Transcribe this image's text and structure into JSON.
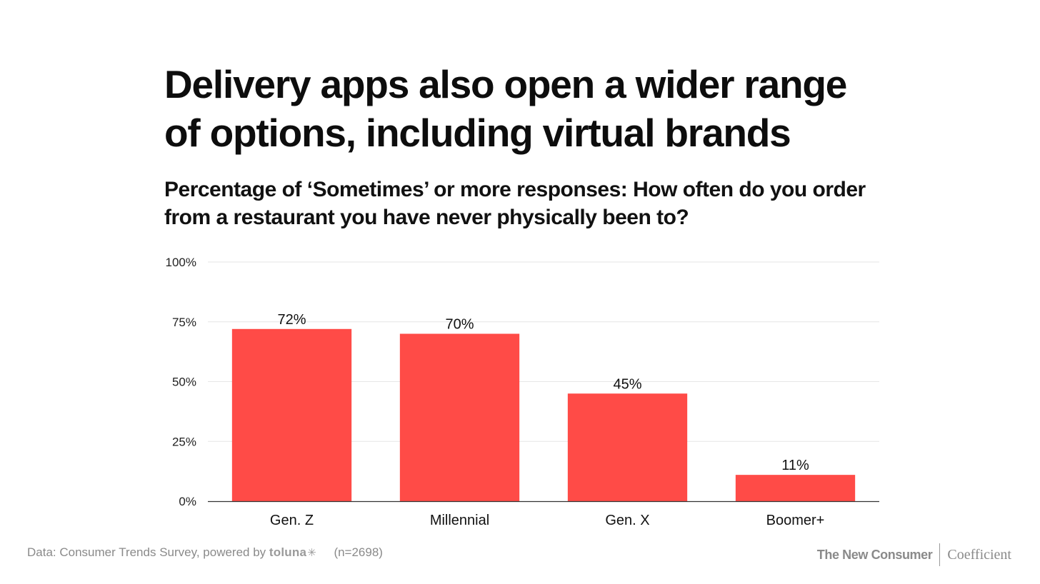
{
  "title": "Delivery apps also open a wider range of options, including virtual brands",
  "subtitle": "Percentage of ‘Sometimes’ or more responses: How often do you order from a restaurant you have never physically been to?",
  "chart_data": {
    "type": "bar",
    "categories": [
      "Gen. Z",
      "Millennial",
      "Gen. X",
      "Boomer+"
    ],
    "values": [
      72,
      70,
      45,
      11
    ],
    "value_labels": [
      "72%",
      "70%",
      "45%",
      "11%"
    ],
    "ylim": [
      0,
      100
    ],
    "yticks": [
      0,
      25,
      50,
      75,
      100
    ],
    "ytick_labels": [
      "0%",
      "25%",
      "50%",
      "75%",
      "100%"
    ],
    "xlabel": "",
    "ylabel": "",
    "grid": true,
    "bar_color": "#ff4b47"
  },
  "footer": {
    "source_prefix": "Data: Consumer Trends Survey, powered by",
    "source_brand": "toluna",
    "source_brand_mark": "✳",
    "sample": "(n=2698)",
    "brand_left": "The New Consumer",
    "brand_right": "Coefficient"
  },
  "colors": {
    "bar": "#ff4b47",
    "grid": "#e6e6e6",
    "axis": "#333333",
    "footer_text": "#8a8a8a"
  }
}
